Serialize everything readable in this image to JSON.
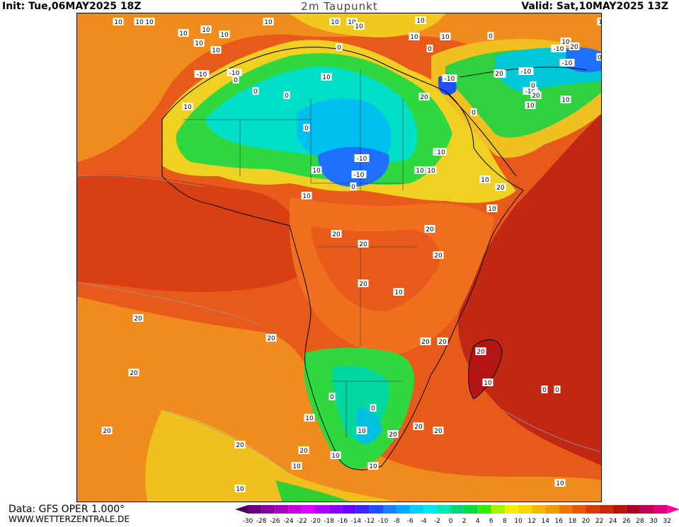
{
  "header": {
    "init": "Init: Tue,06MAY2025 18Z",
    "title": "2m Taupunkt",
    "valid": "Valid: Sat,10MAY2025 13Z"
  },
  "footer": {
    "data_source": "Data: GFS OPER 1.000°",
    "website": "WWW.WETTERZENTRALE.DE"
  },
  "legend": {
    "ticks": [
      "-30",
      "-28",
      "-26",
      "-24",
      "-22",
      "-20",
      "-18",
      "-16",
      "-14",
      "-12",
      "-10",
      "-8",
      "-6",
      "-4",
      "-2",
      "0",
      "2",
      "4",
      "6",
      "8",
      "10",
      "12",
      "14",
      "16",
      "18",
      "20",
      "22",
      "24",
      "26",
      "28",
      "30",
      "32"
    ],
    "colors": [
      "#4b0057",
      "#6a0080",
      "#8a00a0",
      "#a800c0",
      "#c800e0",
      "#e000ff",
      "#b000ff",
      "#8a00ff",
      "#6a00ff",
      "#3c28ff",
      "#1e50ff",
      "#1e80ff",
      "#00a8ff",
      "#00d0ff",
      "#00e8e8",
      "#00e8b4",
      "#00d878",
      "#00e040",
      "#32f000",
      "#a8f000",
      "#f0f000",
      "#f8d800",
      "#f8b800",
      "#f89800",
      "#f07800",
      "#e85800",
      "#d83c00",
      "#c82800",
      "#b81400",
      "#a80028",
      "#c00050",
      "#e0007a",
      "#ff00a0"
    ]
  },
  "map": {
    "contour_labels": [
      "10",
      "10",
      "10",
      "10",
      "10",
      "10",
      "10",
      "10",
      "10",
      "10",
      "10",
      "10",
      "0",
      "0",
      "0",
      "10",
      "-10",
      "-10",
      "0",
      "0",
      "10",
      "-10",
      "-10",
      "-10",
      "-10",
      "0",
      "0",
      "10",
      "0",
      "20",
      "10",
      "10",
      "-10",
      "0",
      "10",
      "10",
      "10",
      "-10",
      "10",
      "10",
      "0",
      "20",
      "10",
      "0",
      "0",
      "10",
      "10",
      "20",
      "20",
      "-10",
      "10",
      "10",
      "20",
      "10",
      "10",
      "10",
      "20",
      "20",
      "20",
      "20",
      "20",
      "10",
      "20",
      "20",
      "20",
      "20",
      "20",
      "20",
      "20",
      "20",
      "20",
      "10",
      "0",
      "0",
      "0",
      "0",
      "10",
      "20",
      "20",
      "20",
      "10",
      "10",
      "10",
      "10",
      "10",
      "10"
    ]
  }
}
